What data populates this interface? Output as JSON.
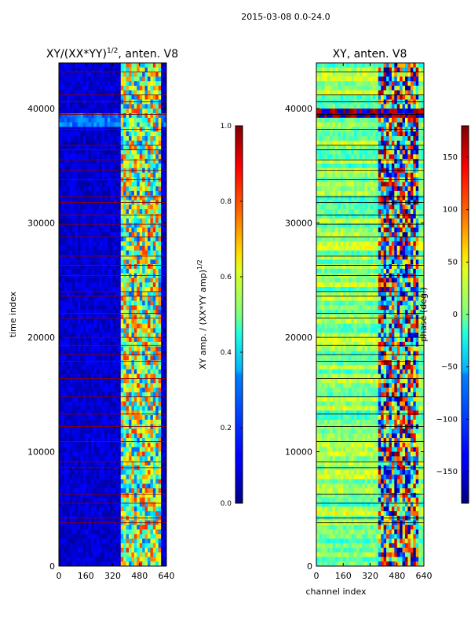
{
  "figure_title": "2015-03-08 0.0-24.0",
  "chart_data": [
    {
      "type": "heatmap",
      "title": "XY/(XX*YY)",
      "title_superscript": "1/2",
      "title_suffix": ", anten. V8",
      "ylabel": "time index",
      "xlabel": "",
      "xlim": [
        0,
        640
      ],
      "ylim": [
        0,
        44000
      ],
      "xticks": [
        0,
        160,
        320,
        480,
        640
      ],
      "yticks": [
        0,
        10000,
        20000,
        30000,
        40000
      ],
      "flag_line_color": "#8b0000",
      "flagged_time_indices": [
        3800,
        4200,
        5500,
        6300,
        8600,
        9100,
        10900,
        12200,
        13300,
        14800,
        16400,
        17900,
        18500,
        19300,
        20000,
        21700,
        22100,
        23600,
        24000,
        25400,
        26300,
        27100,
        28800,
        29900,
        30700,
        31800,
        32300,
        33800,
        34600,
        35500,
        36400,
        36800,
        38200,
        39500,
        40600,
        41200,
        43200
      ],
      "colorbar": {
        "label": "XY amp. / (XX*YY amp)",
        "label_superscript": "1/2",
        "range": [
          0.0,
          1.0
        ],
        "ticks": [
          "0.0",
          "0.2",
          "0.4",
          "0.6",
          "0.8",
          "1.0"
        ],
        "colormap": "jet"
      }
    },
    {
      "type": "heatmap",
      "title": "XY, anten. V8",
      "xlabel": "channel index",
      "ylabel": "",
      "xlim": [
        0,
        640
      ],
      "ylim": [
        0,
        44000
      ],
      "xticks": [
        0,
        160,
        320,
        480,
        640
      ],
      "yticks": [
        0,
        10000,
        20000,
        30000,
        40000
      ],
      "flag_line_color": "#000000",
      "flagged_time_indices": [
        3800,
        4200,
        5500,
        6300,
        8600,
        9100,
        10900,
        12200,
        13300,
        14800,
        16400,
        17900,
        18500,
        19300,
        20000,
        21700,
        22100,
        23600,
        24000,
        25400,
        26300,
        27100,
        28800,
        29900,
        30700,
        31800,
        32300,
        33800,
        34600,
        35500,
        36400,
        36800,
        38200,
        39500,
        40600,
        41200,
        43200
      ],
      "colorbar": {
        "label": "phase (deg.)",
        "range": [
          -180,
          180
        ],
        "ticks": [
          "−150",
          "−100",
          "−50",
          "0",
          "50",
          "100",
          "150"
        ],
        "colormap": "jet"
      }
    }
  ]
}
